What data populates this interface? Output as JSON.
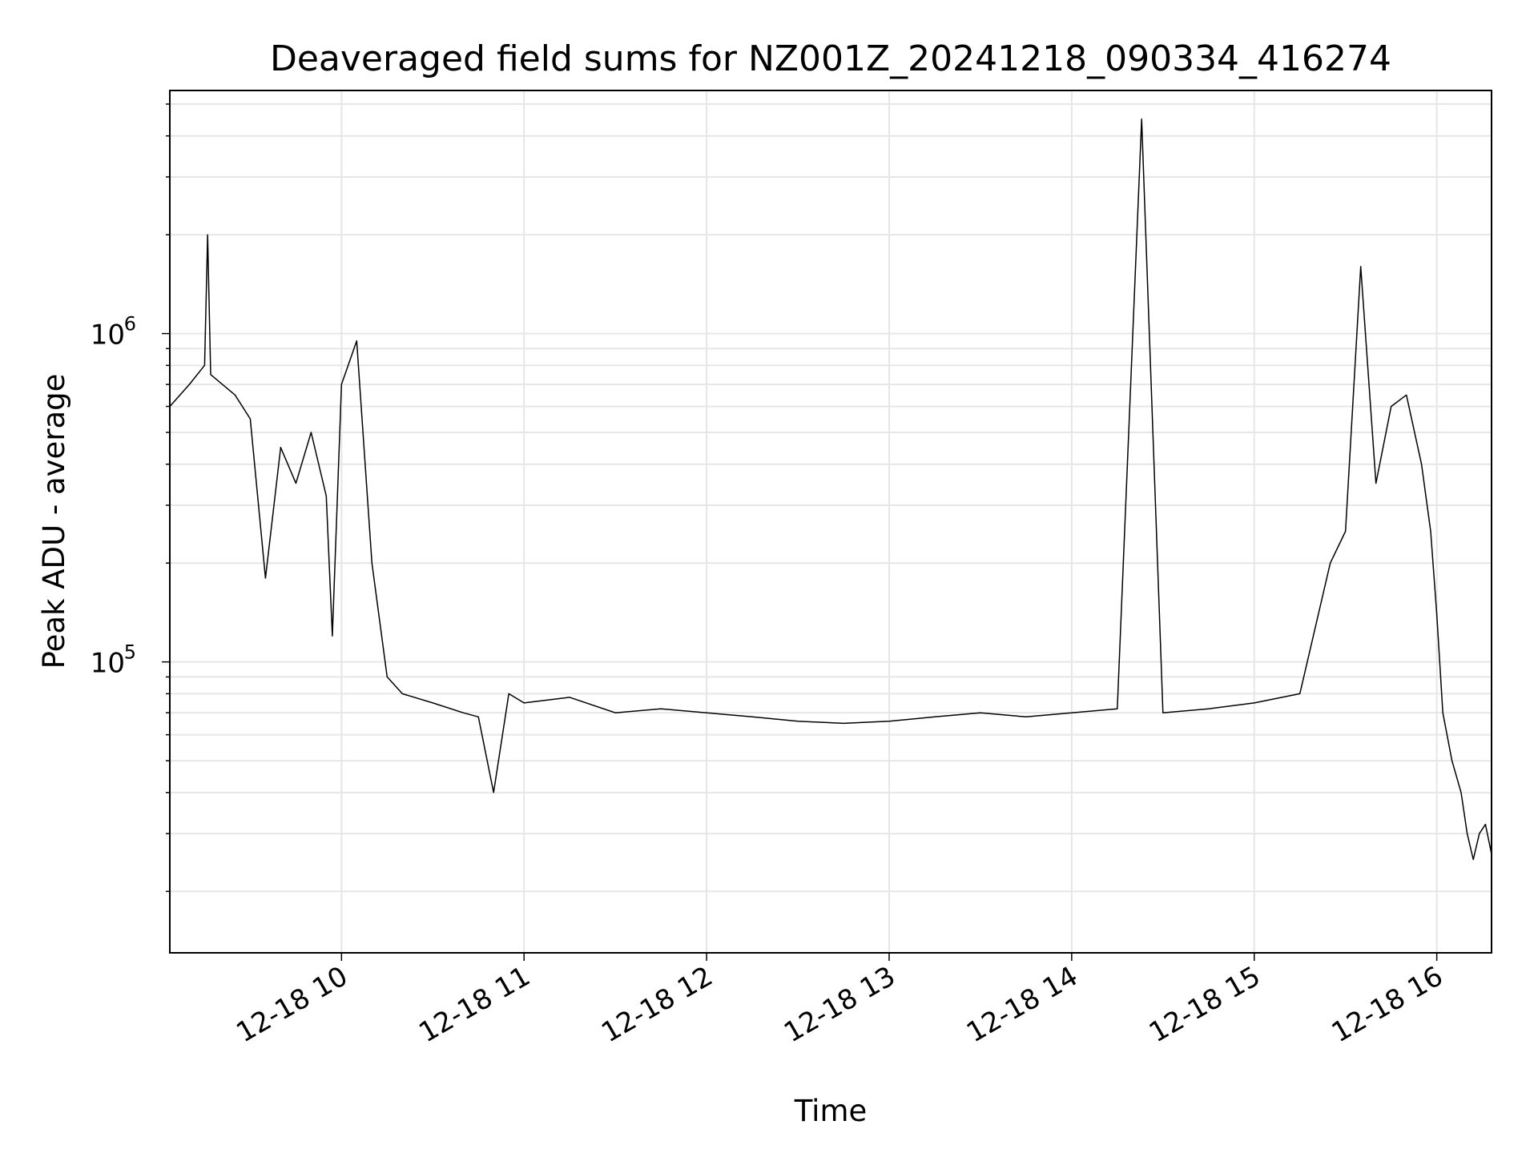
{
  "chart_data": {
    "type": "line",
    "title": "Deaveraged field sums for NZ001Z_20241218_090334_416274",
    "xlabel": "Time",
    "ylabel": "Peak ADU - average",
    "yscale": "log",
    "ylim": [
      13000,
      5500000
    ],
    "xlim": [
      "2024-12-18T09:03:34",
      "2024-12-18T16:18:00"
    ],
    "grid": true,
    "line_color": "#000000",
    "x_ticks": [
      {
        "label": "12-18 10",
        "time": "2024-12-18T10:00:00"
      },
      {
        "label": "12-18 11",
        "time": "2024-12-18T11:00:00"
      },
      {
        "label": "12-18 12",
        "time": "2024-12-18T12:00:00"
      },
      {
        "label": "12-18 13",
        "time": "2024-12-18T13:00:00"
      },
      {
        "label": "12-18 14",
        "time": "2024-12-18T14:00:00"
      },
      {
        "label": "12-18 15",
        "time": "2024-12-18T15:00:00"
      },
      {
        "label": "12-18 16",
        "time": "2024-12-18T16:00:00"
      }
    ],
    "y_ticks": [
      {
        "base": "10",
        "exp": "5",
        "value": 100000
      },
      {
        "base": "10",
        "exp": "6",
        "value": 1000000
      }
    ],
    "series": [
      {
        "points": [
          [
            "2024-12-18T09:03:34",
            600000
          ],
          [
            "2024-12-18T09:10:00",
            700000
          ],
          [
            "2024-12-18T09:15:00",
            800000
          ],
          [
            "2024-12-18T09:16:00",
            2000000
          ],
          [
            "2024-12-18T09:17:00",
            750000
          ],
          [
            "2024-12-18T09:25:00",
            650000
          ],
          [
            "2024-12-18T09:30:00",
            550000
          ],
          [
            "2024-12-18T09:35:00",
            180000
          ],
          [
            "2024-12-18T09:40:00",
            450000
          ],
          [
            "2024-12-18T09:45:00",
            350000
          ],
          [
            "2024-12-18T09:50:00",
            500000
          ],
          [
            "2024-12-18T09:55:00",
            320000
          ],
          [
            "2024-12-18T09:57:00",
            120000
          ],
          [
            "2024-12-18T10:00:00",
            700000
          ],
          [
            "2024-12-18T10:05:00",
            950000
          ],
          [
            "2024-12-18T10:10:00",
            200000
          ],
          [
            "2024-12-18T10:15:00",
            90000
          ],
          [
            "2024-12-18T10:20:00",
            80000
          ],
          [
            "2024-12-18T10:30:00",
            75000
          ],
          [
            "2024-12-18T10:40:00",
            70000
          ],
          [
            "2024-12-18T10:45:00",
            68000
          ],
          [
            "2024-12-18T10:50:00",
            40000
          ],
          [
            "2024-12-18T10:55:00",
            80000
          ],
          [
            "2024-12-18T11:00:00",
            75000
          ],
          [
            "2024-12-18T11:15:00",
            78000
          ],
          [
            "2024-12-18T11:30:00",
            70000
          ],
          [
            "2024-12-18T11:45:00",
            72000
          ],
          [
            "2024-12-18T12:00:00",
            70000
          ],
          [
            "2024-12-18T12:15:00",
            68000
          ],
          [
            "2024-12-18T12:30:00",
            66000
          ],
          [
            "2024-12-18T12:45:00",
            65000
          ],
          [
            "2024-12-18T13:00:00",
            66000
          ],
          [
            "2024-12-18T13:15:00",
            68000
          ],
          [
            "2024-12-18T13:30:00",
            70000
          ],
          [
            "2024-12-18T13:45:00",
            68000
          ],
          [
            "2024-12-18T14:00:00",
            70000
          ],
          [
            "2024-12-18T14:15:00",
            72000
          ],
          [
            "2024-12-18T14:23:00",
            4500000
          ],
          [
            "2024-12-18T14:30:00",
            70000
          ],
          [
            "2024-12-18T14:45:00",
            72000
          ],
          [
            "2024-12-18T15:00:00",
            75000
          ],
          [
            "2024-12-18T15:15:00",
            80000
          ],
          [
            "2024-12-18T15:25:00",
            200000
          ],
          [
            "2024-12-18T15:30:00",
            250000
          ],
          [
            "2024-12-18T15:35:00",
            1600000
          ],
          [
            "2024-12-18T15:40:00",
            350000
          ],
          [
            "2024-12-18T15:45:00",
            600000
          ],
          [
            "2024-12-18T15:50:00",
            650000
          ],
          [
            "2024-12-18T15:55:00",
            400000
          ],
          [
            "2024-12-18T15:58:00",
            250000
          ],
          [
            "2024-12-18T16:00:00",
            140000
          ],
          [
            "2024-12-18T16:02:00",
            70000
          ],
          [
            "2024-12-18T16:05:00",
            50000
          ],
          [
            "2024-12-18T16:08:00",
            40000
          ],
          [
            "2024-12-18T16:10:00",
            30000
          ],
          [
            "2024-12-18T16:12:00",
            25000
          ],
          [
            "2024-12-18T16:14:00",
            30000
          ],
          [
            "2024-12-18T16:16:00",
            32000
          ],
          [
            "2024-12-18T16:18:00",
            26000
          ]
        ]
      }
    ]
  }
}
